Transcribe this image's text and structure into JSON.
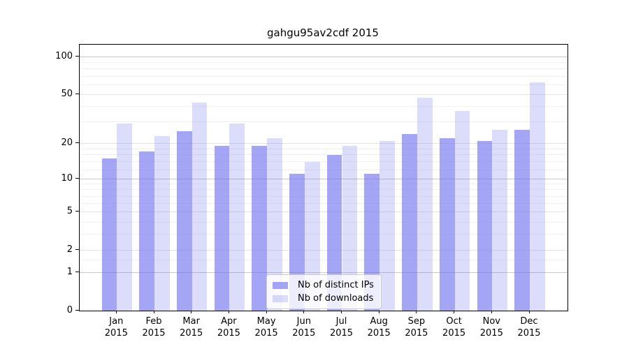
{
  "title": "gahgu95av2cdf 2015",
  "chart_data": {
    "type": "bar",
    "categories": [
      "Jan",
      "Feb",
      "Mar",
      "Apr",
      "May",
      "Jun",
      "Jul",
      "Aug",
      "Sep",
      "Oct",
      "Nov",
      "Dec"
    ],
    "year_label": "2015",
    "series": [
      {
        "name": "Nb of distinct IPs",
        "color": "rgba(110,110,240,0.62)",
        "values": [
          15,
          17,
          25,
          19,
          19,
          11,
          16,
          11,
          24,
          22,
          21,
          26
        ]
      },
      {
        "name": "Nb of downloads",
        "color": "rgba(110,110,240,0.24)",
        "values": [
          29,
          23,
          43,
          29,
          22,
          14,
          19,
          21,
          47,
          37,
          26,
          63
        ]
      }
    ],
    "title": "gahgu95av2cdf 2015",
    "xlabel": "",
    "ylabel": "",
    "y_scale": "log10(1+y)",
    "ylim": [
      0,
      120
    ],
    "y_ticks": [
      0,
      1,
      2,
      5,
      10,
      20,
      50,
      100
    ],
    "y_minor_ticks": [
      1.5,
      3,
      4,
      6,
      7,
      8,
      9,
      12,
      14,
      16,
      18,
      30,
      40,
      60,
      70,
      80,
      90
    ],
    "grid": "on",
    "legend_position": "bottom-center-inside"
  },
  "legend": {
    "items": [
      {
        "label": "Nb of distinct IPs",
        "color": "rgba(110,110,240,0.62)"
      },
      {
        "label": "Nb of downloads",
        "color": "rgba(110,110,240,0.24)"
      }
    ]
  },
  "colors": {
    "background": "#ffffff",
    "axis": "#000000",
    "grid_major_dark": "#c9c9c9",
    "grid_major_light": "#e4e4e4",
    "grid_minor": "#f2f2f2",
    "bar_base": "#6e6ef0"
  }
}
